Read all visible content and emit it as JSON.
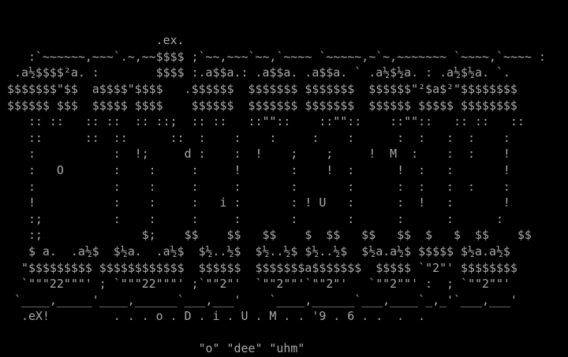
{
  "palette": {
    "background": "#000000",
    "foreground": "#a9a9a9"
  },
  "texts": {
    "top_marker": ".ex.",
    "signature": ".eX!",
    "logo_word": "oDiUM",
    "logo_year": "'96",
    "title_spelled": ". . . o . D . i . U . M . . '9 . 6 . .  .  .",
    "pronunciation": "\"o\" \"dee\" \"uhm\""
  },
  "ascii_art": {
    "lines": [
      "",
      "",
      "                      .ex.",
      "    :`~~~~~~,~~~`.~,~~$$$$ ;`~~,~~~`~~,`~~~~ `~~~~~,~`~,~~~~~~~ `~~~~,`~~~~ :",
      "  .a½$$$$²a. :        $$$$ :.a$$a.: .a$$a. .a$$a. ` .a½$½a. : .a½$½a. `.",
      " $$$$$$$\"$$  a$$$$\"$$$$   .$$$$$$  $$$$$$$ $$$$$$$  $$$$$$\"²$a$²\"$$$$$$$$",
      " $$$$$$ $$$  $$$$$ $$$$    $$$$$$  $$$$$$$ $$$$$$$  $$$$$$ $$$$$ $$$$$$$$",
      "    :: ::   :: ::  :: ::;  :: ::   ::\"\"::    ::\"\"::    ::\"\"::   :: ::   ::",
      "    ::      ::  ::      ::  :    :    :     :    :      :  :   :  :    :",
      "    :           :  !;     d :    :  !    ;    ;     !  M  :    :  :    !",
      "    :   O       :    :     :     !       :    !  :      !  :   :       !",
      "    :           :    :     :     :       :       :      :  :   :  :    :",
      "    !           :    :     :   i :       : ! U   :      :  !   :       !",
      "    :;          :    :     :     :       :       :      :      :      :",
      "    :;              $;    $$    $$   $$    $  $$   $$   $$  $   $  $$    $$",
      "    $ a.  .a½$  $½a.  .a½$  $½..½$  $½..½$ $½..½$  $½a.a½$ $$$$$ $½a.a½$",
      "   \"$$$$$$$$$ $$$$$$$$$$$$  $$$$$$  $$$$$$$a$$$$$$$  $$$$$ `\"2\"' $$$$$$$$",
      "   `\"\"\"22\"\"\"' ; `\"\"\"22\"\"\"' ;`\"\"2\"'  `\"\"2\"\"'`\"\"2\"'   `\"\"2\"\"' :  ; `\"\"2\"\"'",
      "  `____,_____'____,______`___,___'    `____,______`___,____`_,_'`___,___'",
      "   .eX!         . . . o . D . i . U . M . . '9 . 6 . .  .  .",
      "",
      "                            \"o\" \"dee\" \"uhm\""
    ]
  }
}
